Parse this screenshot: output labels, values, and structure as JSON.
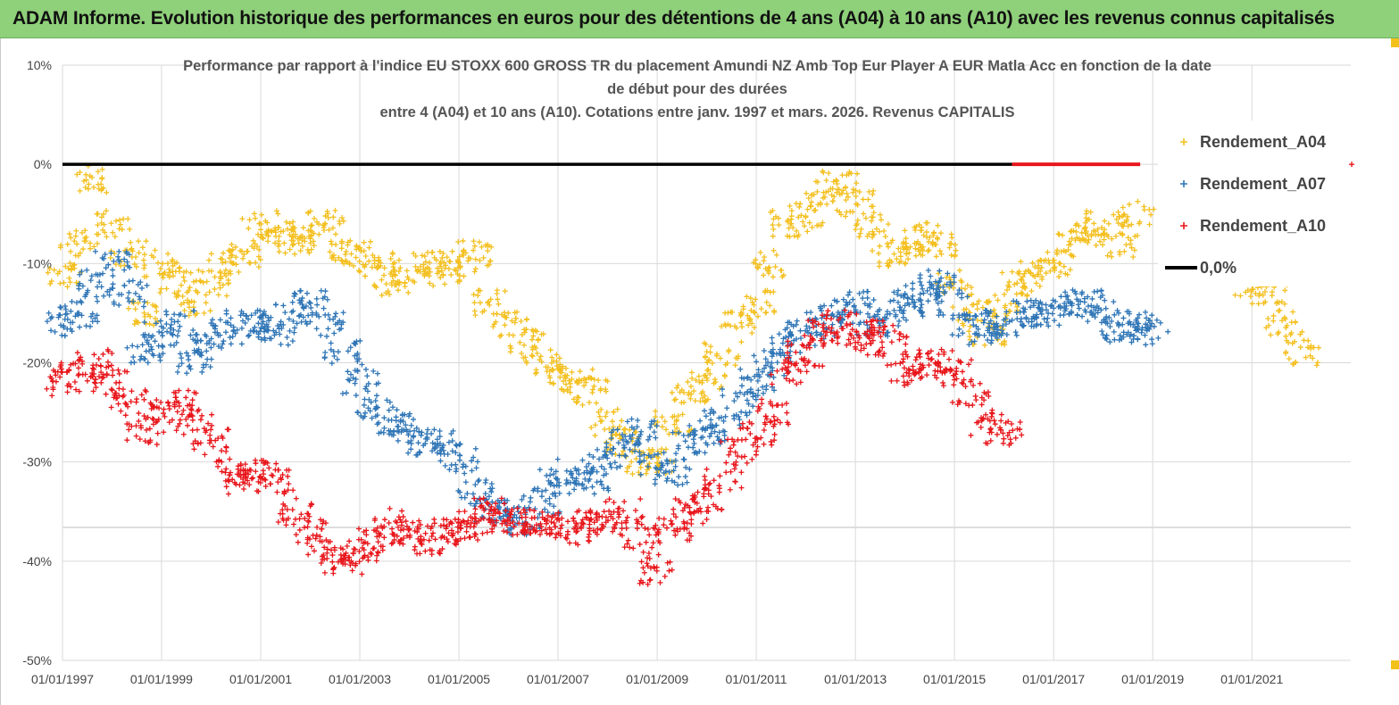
{
  "banner": {
    "title": "ADAM Informe. Evolution historique des performances en euros pour des détentions de 4 ans (A04) à 10 ans (A10) avec les revenus connus capitalisés"
  },
  "colors": {
    "banner_bg": "#8fd07a",
    "A04": "#f4c020",
    "A07": "#2e75b6",
    "A10": "#e8161b",
    "zero_line": "#000000",
    "grid": "#d9d9d9"
  },
  "chart_data": {
    "type": "scatter",
    "title_lines": [
      "Performance par rapport à l'indice EU STOXX 600 GROSS TR  du placement Amundi NZ Amb Top Eur Player A EUR Matla Acc en fonction de la date",
      "de début pour des durées",
      "entre 4 (A04) et 10 ans (A10). Cotations entre janv. 1997 et mars. 2026. Revenus CAPITALIS"
    ],
    "x_axis": {
      "type": "date",
      "range": [
        "1997-01-01",
        "2022-12-31"
      ],
      "tick_labels": [
        "01/01/1997",
        "01/01/1999",
        "01/01/2001",
        "01/01/2003",
        "01/01/2005",
        "01/01/2007",
        "01/01/2009",
        "01/01/2011",
        "01/01/2013",
        "01/01/2015",
        "01/01/2017",
        "01/01/2019",
        "01/01/2021"
      ]
    },
    "y_axis": {
      "range": [
        -50,
        10
      ],
      "unit": "%",
      "ticks": [
        10,
        0,
        -10,
        -20,
        -30,
        -40,
        -50
      ],
      "tick_labels": [
        "10%",
        "0%",
        "-10%",
        "-20%",
        "-30%",
        "-40%",
        "-50%"
      ]
    },
    "grid": true,
    "legend_position": "top-right",
    "legend": [
      "Rendement_A04",
      "Rendement_A07",
      "Rendement_A10",
      "0,0%"
    ],
    "series": [
      {
        "name": "Rendement_A04",
        "marker": "+",
        "points": [
          [
            "1997-01",
            -11
          ],
          [
            "1997-05",
            -8
          ],
          [
            "1997-09",
            -1.5
          ],
          [
            "1998-01",
            -6
          ],
          [
            "1998-05",
            -9
          ],
          [
            "1998-09",
            -15
          ],
          [
            "1999-01",
            -10
          ],
          [
            "1999-05",
            -12
          ],
          [
            "1999-09",
            -14
          ],
          [
            "2000-01",
            -12
          ],
          [
            "2000-05",
            -10
          ],
          [
            "2000-09",
            -9
          ],
          [
            "2001-01",
            -6
          ],
          [
            "2001-05",
            -7
          ],
          [
            "2001-09",
            -8
          ],
          [
            "2002-01",
            -7
          ],
          [
            "2002-05",
            -6
          ],
          [
            "2002-09",
            -9
          ],
          [
            "2003-01",
            -9
          ],
          [
            "2003-05",
            -10
          ],
          [
            "2003-09",
            -12
          ],
          [
            "2004-01",
            -11
          ],
          [
            "2004-05",
            -10
          ],
          [
            "2004-09",
            -11
          ],
          [
            "2005-01",
            -10
          ],
          [
            "2005-05",
            -9
          ],
          [
            "2005-09",
            -14
          ],
          [
            "2006-01",
            -16
          ],
          [
            "2006-05",
            -18
          ],
          [
            "2006-09",
            -20
          ],
          [
            "2007-01",
            -21
          ],
          [
            "2007-05",
            -22
          ],
          [
            "2007-09",
            -23
          ],
          [
            "2008-01",
            -26
          ],
          [
            "2008-05",
            -28
          ],
          [
            "2008-09",
            -30
          ],
          [
            "2009-01",
            -30
          ],
          [
            "2009-05",
            -26
          ],
          [
            "2009-09",
            -23
          ],
          [
            "2010-01",
            -22
          ],
          [
            "2010-05",
            -19
          ],
          [
            "2010-09",
            -16
          ],
          [
            "2011-01",
            -14
          ],
          [
            "2011-05",
            -10
          ],
          [
            "2011-09",
            -6
          ],
          [
            "2012-01",
            -5
          ],
          [
            "2012-05",
            -3
          ],
          [
            "2012-09",
            -2
          ],
          [
            "2013-01",
            -4
          ],
          [
            "2013-05",
            -6
          ],
          [
            "2013-09",
            -9
          ],
          [
            "2014-01",
            -9
          ],
          [
            "2014-05",
            -7
          ],
          [
            "2014-09",
            -8
          ],
          [
            "2015-01",
            -12
          ],
          [
            "2015-05",
            -15
          ],
          [
            "2015-09",
            -17
          ],
          [
            "2016-01",
            -14
          ],
          [
            "2016-05",
            -12
          ],
          [
            "2016-09",
            -11
          ],
          [
            "2017-01",
            -10
          ],
          [
            "2017-05",
            -8
          ],
          [
            "2017-09",
            -7
          ],
          [
            "2018-01",
            -6
          ],
          [
            "2018-05",
            -8
          ],
          [
            "2018-09",
            -5
          ],
          [
            "2021-01",
            -12
          ],
          [
            "2021-05",
            -13
          ],
          [
            "2021-09",
            -16
          ],
          [
            "2022-01",
            -19
          ]
        ]
      },
      {
        "name": "Rendement_A07",
        "marker": "+",
        "points": [
          [
            "1997-01",
            -16
          ],
          [
            "1997-05",
            -15
          ],
          [
            "1997-09",
            -12
          ],
          [
            "1998-01",
            -10
          ],
          [
            "1998-05",
            -13
          ],
          [
            "1998-09",
            -19
          ],
          [
            "1999-01",
            -17
          ],
          [
            "1999-05",
            -16
          ],
          [
            "1999-09",
            -20
          ],
          [
            "2000-01",
            -18
          ],
          [
            "2000-05",
            -17
          ],
          [
            "2000-09",
            -16
          ],
          [
            "2001-01",
            -16
          ],
          [
            "2001-05",
            -17
          ],
          [
            "2001-09",
            -15
          ],
          [
            "2002-01",
            -14
          ],
          [
            "2002-05",
            -16
          ],
          [
            "2002-09",
            -19
          ],
          [
            "2003-01",
            -22
          ],
          [
            "2003-05",
            -25
          ],
          [
            "2003-09",
            -26
          ],
          [
            "2004-01",
            -27
          ],
          [
            "2004-05",
            -28
          ],
          [
            "2004-09",
            -28
          ],
          [
            "2005-01",
            -30
          ],
          [
            "2005-05",
            -33
          ],
          [
            "2005-09",
            -35
          ],
          [
            "2006-01",
            -35
          ],
          [
            "2006-05",
            -36
          ],
          [
            "2006-09",
            -34
          ],
          [
            "2007-01",
            -32
          ],
          [
            "2007-05",
            -31
          ],
          [
            "2007-09",
            -32
          ],
          [
            "2008-01",
            -30
          ],
          [
            "2008-05",
            -28
          ],
          [
            "2008-09",
            -27
          ],
          [
            "2009-01",
            -30
          ],
          [
            "2009-05",
            -31
          ],
          [
            "2009-09",
            -28
          ],
          [
            "2010-01",
            -27
          ],
          [
            "2010-05",
            -26
          ],
          [
            "2010-09",
            -24
          ],
          [
            "2011-01",
            -22
          ],
          [
            "2011-05",
            -20
          ],
          [
            "2011-09",
            -18
          ],
          [
            "2012-01",
            -17
          ],
          [
            "2012-05",
            -16
          ],
          [
            "2012-09",
            -15
          ],
          [
            "2013-01",
            -14
          ],
          [
            "2013-05",
            -16
          ],
          [
            "2013-09",
            -15
          ],
          [
            "2014-01",
            -14
          ],
          [
            "2014-05",
            -13
          ],
          [
            "2014-09",
            -12
          ],
          [
            "2015-01",
            -14
          ],
          [
            "2015-05",
            -16
          ],
          [
            "2015-09",
            -17
          ],
          [
            "2016-01",
            -16
          ],
          [
            "2016-05",
            -15
          ],
          [
            "2016-09",
            -15
          ],
          [
            "2017-01",
            -15
          ],
          [
            "2017-05",
            -14
          ],
          [
            "2017-09",
            -14
          ],
          [
            "2018-01",
            -15
          ],
          [
            "2018-05",
            -17
          ],
          [
            "2018-09",
            -16
          ],
          [
            "2019-01",
            -17
          ]
        ]
      },
      {
        "name": "Rendement_A10",
        "marker": "+",
        "points": [
          [
            "1997-01",
            -22
          ],
          [
            "1997-05",
            -21
          ],
          [
            "1997-09",
            -20
          ],
          [
            "1998-01",
            -22
          ],
          [
            "1998-05",
            -24
          ],
          [
            "1998-09",
            -27
          ],
          [
            "1999-01",
            -25
          ],
          [
            "1999-05",
            -24
          ],
          [
            "1999-09",
            -26
          ],
          [
            "2000-01",
            -28
          ],
          [
            "2000-05",
            -31
          ],
          [
            "2000-09",
            -32
          ],
          [
            "2001-01",
            -31
          ],
          [
            "2001-05",
            -32
          ],
          [
            "2001-09",
            -35
          ],
          [
            "2002-01",
            -37
          ],
          [
            "2002-05",
            -39
          ],
          [
            "2002-09",
            -40
          ],
          [
            "2003-01",
            -39
          ],
          [
            "2003-05",
            -38
          ],
          [
            "2003-09",
            -36
          ],
          [
            "2004-01",
            -37
          ],
          [
            "2004-05",
            -38
          ],
          [
            "2004-09",
            -37
          ],
          [
            "2005-01",
            -37
          ],
          [
            "2005-05",
            -36
          ],
          [
            "2005-09",
            -35
          ],
          [
            "2006-01",
            -36
          ],
          [
            "2006-05",
            -36
          ],
          [
            "2006-09",
            -36
          ],
          [
            "2007-01",
            -36
          ],
          [
            "2007-05",
            -37
          ],
          [
            "2007-09",
            -36
          ],
          [
            "2008-01",
            -36
          ],
          [
            "2008-05",
            -35
          ],
          [
            "2008-09",
            -38
          ],
          [
            "2009-01",
            -41
          ],
          [
            "2009-05",
            -37
          ],
          [
            "2009-09",
            -35
          ],
          [
            "2010-01",
            -34
          ],
          [
            "2010-05",
            -32
          ],
          [
            "2010-09",
            -29
          ],
          [
            "2011-01",
            -27
          ],
          [
            "2011-05",
            -25
          ],
          [
            "2011-09",
            -21
          ],
          [
            "2012-01",
            -19
          ],
          [
            "2012-05",
            -17
          ],
          [
            "2012-09",
            -16
          ],
          [
            "2013-01",
            -17
          ],
          [
            "2013-05",
            -18
          ],
          [
            "2013-09",
            -17
          ],
          [
            "2014-01",
            -21
          ],
          [
            "2014-05",
            -20
          ],
          [
            "2014-09",
            -20
          ],
          [
            "2015-01",
            -21
          ],
          [
            "2015-05",
            -23
          ],
          [
            "2015-09",
            -26
          ],
          [
            "2016-01",
            -27
          ]
        ]
      },
      {
        "name": "0,0%",
        "type": "line",
        "points": [
          [
            "1997-01-01",
            0
          ],
          [
            "2016-03-01",
            0
          ]
        ]
      }
    ]
  }
}
